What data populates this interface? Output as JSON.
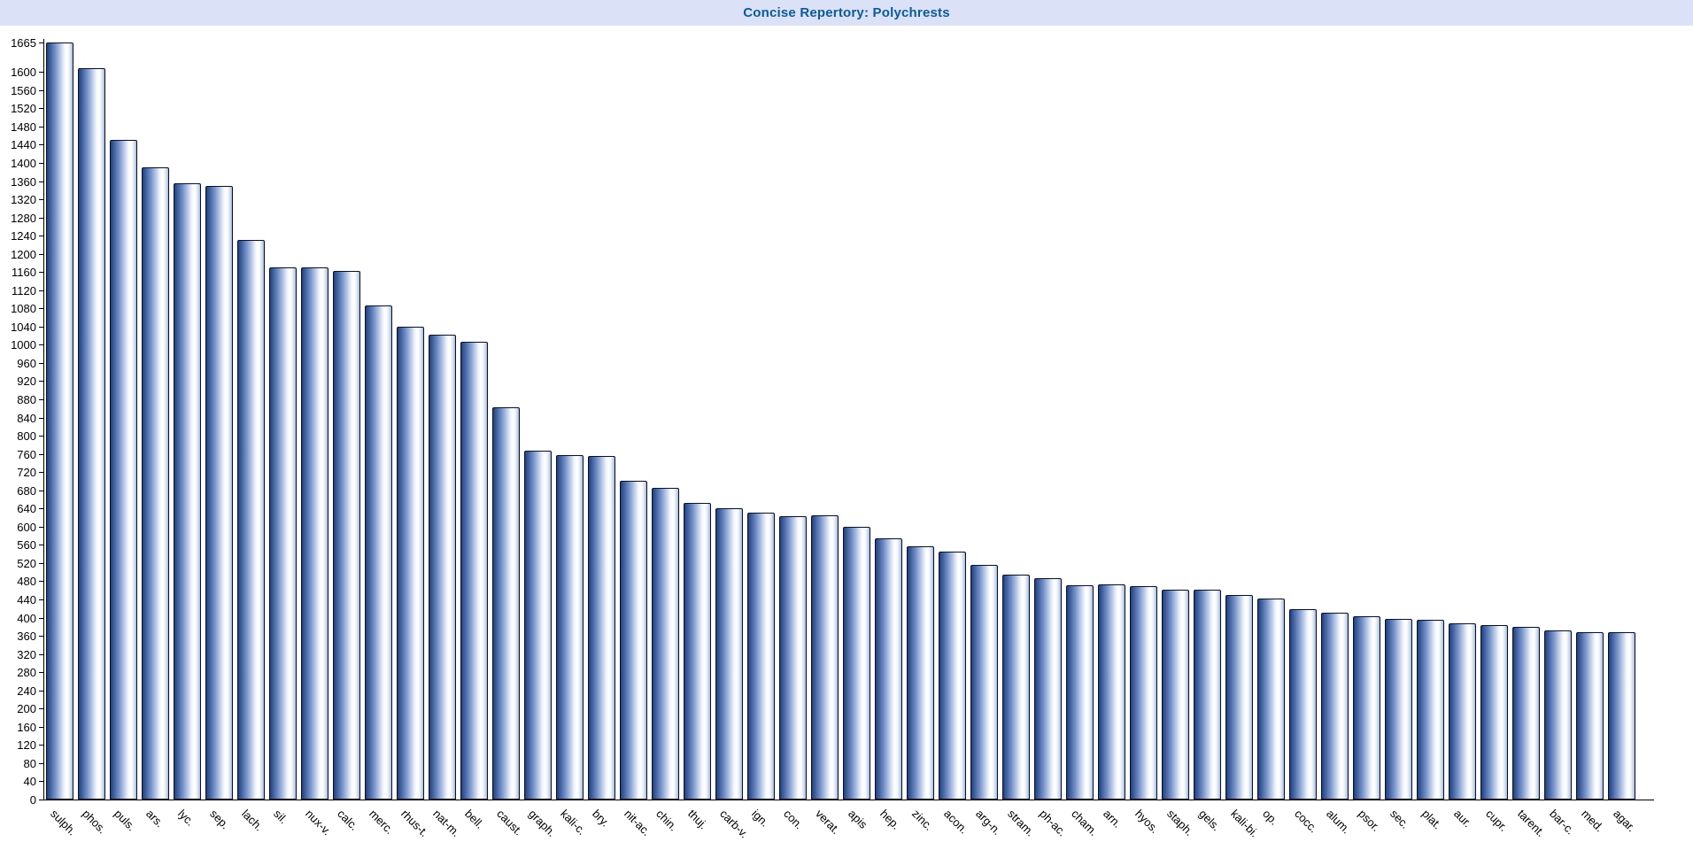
{
  "title": "Concise Repertory: Polychrests",
  "colors": {
    "title_bar_bg": "#dbe1f7",
    "title_text": "#0c5a96",
    "bar_dark": "#23407c",
    "bar_mid": "#7490c6",
    "bar_highlight": "#ffffff",
    "bar_border": "#0a1026",
    "axis": "#000000"
  },
  "chart_data": {
    "type": "bar",
    "title": "Concise Repertory: Polychrests",
    "categories": [
      "sulph.",
      "phos.",
      "puls.",
      "ars.",
      "lyc.",
      "sep.",
      "lach.",
      "sil.",
      "nux-v.",
      "calc.",
      "merc.",
      "rhus-t.",
      "nat-m.",
      "bell.",
      "caust.",
      "graph.",
      "kali-c.",
      "bry.",
      "nit-ac.",
      "chin.",
      "thuj.",
      "carb-v.",
      "ign.",
      "con.",
      "verat.",
      "apis",
      "hep.",
      "zinc.",
      "acon.",
      "arg-n.",
      "stram.",
      "ph-ac.",
      "cham.",
      "arn.",
      "hyos.",
      "staph.",
      "gels.",
      "kali-bi.",
      "op.",
      "cocc.",
      "alum.",
      "psor.",
      "sec.",
      "plat.",
      "aur.",
      "cupr.",
      "tarent.",
      "bar-c.",
      "med.",
      "agar."
    ],
    "values": [
      1665,
      1608,
      1450,
      1390,
      1355,
      1350,
      1230,
      1170,
      1170,
      1163,
      1087,
      1040,
      1022,
      1007,
      862,
      768,
      757,
      755,
      700,
      685,
      653,
      640,
      631,
      624,
      625,
      599,
      574,
      556,
      546,
      516,
      495,
      486,
      471,
      473,
      470,
      461,
      461,
      449,
      442,
      419,
      411,
      403,
      397,
      395,
      388,
      383,
      380,
      372,
      368,
      368
    ],
    "xlabel": "",
    "ylabel": "",
    "ylim": [
      0,
      1665
    ],
    "ytick_step": 40,
    "ytick_max_regular": 1600,
    "ytick_top": 1665,
    "grid": false,
    "legend": false,
    "bar_labels_rotation_deg": 45
  }
}
